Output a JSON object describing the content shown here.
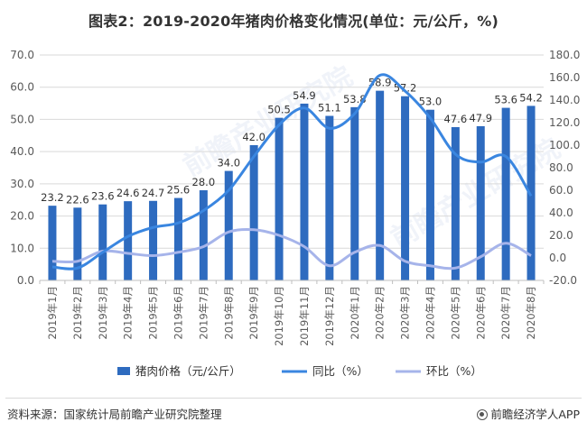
{
  "title": "图表2：2019-2020年猪肉价格变化情况(单位：元/公斤，%)",
  "footer": {
    "source": "资料来源：国家统计局前瞻产业研究院整理",
    "brand": "前瞻经济学人APP"
  },
  "watermark_text": "前瞻产业研究院",
  "colors": {
    "bar": "#2e6bbf",
    "yoy": "#3a86e0",
    "mom": "#a6b4ea",
    "axis": "#595959",
    "grid": "#d9d9d9"
  },
  "chart_data": {
    "type": "bar+line",
    "categories": [
      "2019年1月",
      "2019年2月",
      "2019年3月",
      "2019年4月",
      "2019年5月",
      "2019年6月",
      "2019年7月",
      "2019年8月",
      "2019年9月",
      "2019年10月",
      "2019年11月",
      "2019年12月",
      "2020年1月",
      "2020年2月",
      "2020年3月",
      "2020年4月",
      "2020年5月",
      "2020年6月",
      "2020年7月",
      "2020年8月"
    ],
    "series": [
      {
        "name": "猪肉价格（元/公斤）",
        "type": "bar",
        "axis": "left",
        "values": [
          23.2,
          22.6,
          23.6,
          24.6,
          24.7,
          25.6,
          28.0,
          34.0,
          42.0,
          50.5,
          54.9,
          51.1,
          53.8,
          58.9,
          57.2,
          53.0,
          47.6,
          47.9,
          53.6,
          54.2
        ]
      },
      {
        "name": "同比（%）",
        "type": "line",
        "axis": "right",
        "values": [
          -8,
          -9,
          5,
          19,
          27,
          31,
          42,
          60,
          90,
          118,
          133,
          115,
          128,
          162,
          148,
          124,
          92,
          85,
          90,
          55
        ]
      },
      {
        "name": "环比（%）",
        "type": "line",
        "axis": "right",
        "values": [
          -3,
          -3,
          6,
          4,
          2,
          5,
          10,
          23,
          25,
          20,
          10,
          -7,
          5,
          11,
          -3,
          -7,
          -9,
          1,
          13,
          2
        ]
      }
    ],
    "y_left": {
      "min": 0,
      "max": 70,
      "ticks": [
        "0.0",
        "10.0",
        "20.0",
        "30.0",
        "40.0",
        "50.0",
        "60.0",
        "70.0"
      ]
    },
    "y_right": {
      "min": -20,
      "max": 180,
      "ticks": [
        "-20.0",
        "0.0",
        "20.0",
        "40.0",
        "60.0",
        "80.0",
        "100.0",
        "120.0",
        "140.0",
        "160.0",
        "180.0"
      ]
    },
    "grid": true,
    "legend_position": "bottom"
  }
}
